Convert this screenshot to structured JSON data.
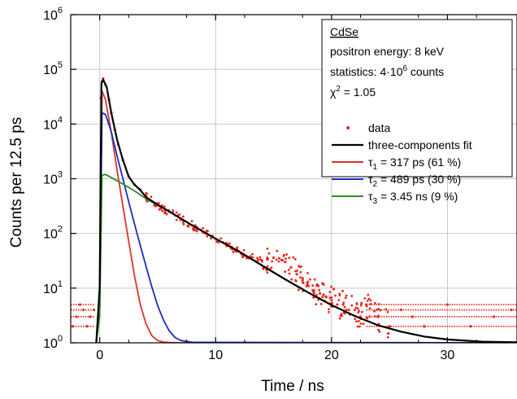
{
  "chart_data": {
    "type": "scatter",
    "title": "",
    "xlabel": "Time / ns",
    "ylabel": "Counts per 12.5 ps",
    "x_range": [
      -2.5,
      36
    ],
    "y_range": [
      1,
      1000000
    ],
    "y_scale": "log",
    "grid": true,
    "legend_position": "top-right",
    "x_ticks": [
      {
        "value": 0,
        "label": "0"
      },
      {
        "value": 10,
        "label": "10"
      },
      {
        "value": 20,
        "label": "20"
      },
      {
        "value": 30,
        "label": "30"
      }
    ],
    "y_ticks": [
      {
        "value": 1,
        "mantissa": "10",
        "exp": "0"
      },
      {
        "value": 10,
        "mantissa": "10",
        "exp": "1"
      },
      {
        "value": 100,
        "mantissa": "10",
        "exp": "2"
      },
      {
        "value": 1000,
        "mantissa": "10",
        "exp": "3"
      },
      {
        "value": 10000,
        "mantissa": "10",
        "exp": "4"
      },
      {
        "value": 100000,
        "mantissa": "10",
        "exp": "5"
      },
      {
        "value": 1000000,
        "mantissa": "10",
        "exp": "6"
      }
    ],
    "info": {
      "sample": "CdSe",
      "energy": "positron energy: 8 keV",
      "statistics_prefix": "statistics: 4·10",
      "statistics_exp": "6",
      "statistics_suffix": " counts",
      "chi_symbol": "χ",
      "chi_exp": "2",
      "chi_value": " = 1.05"
    },
    "legend": [
      {
        "type": "marker",
        "color": "#e8281e",
        "text": "data"
      },
      {
        "type": "line",
        "color": "#000000",
        "text": "three-components fit"
      },
      {
        "type": "line",
        "color": "#d9352a",
        "tau": "τ",
        "sub": "1",
        "text": " = 317 ps (61 %)"
      },
      {
        "type": "line",
        "color": "#1c2bbf",
        "tau": "τ",
        "sub": "2",
        "text": " = 489 ps (30 %)"
      },
      {
        "type": "line",
        "color": "#2e8b22",
        "tau": "τ",
        "sub": "3",
        "text": " = 3.45 ns (9 %)"
      }
    ],
    "series": [
      {
        "name": "τ1 = 317 ps (61 %)",
        "color": "#d9352a",
        "x": [
          -0.3,
          0,
          0.2,
          0.5,
          1,
          1.5,
          2,
          2.5,
          3,
          3.5,
          4,
          4.5,
          5,
          5.5,
          6,
          7,
          36
        ],
        "y": [
          1,
          6,
          40000,
          28000,
          7000,
          1450,
          315,
          72,
          17,
          5,
          2.2,
          1.35,
          1.1,
          1.03,
          1.01,
          1,
          1
        ]
      },
      {
        "name": "τ2 = 489 ps (30 %)",
        "color": "#1c2bbf",
        "x": [
          -0.3,
          0,
          0.2,
          0.5,
          1,
          1.5,
          2,
          2.5,
          3,
          3.5,
          4,
          4.5,
          5,
          5.5,
          6,
          6.5,
          7,
          8,
          36
        ],
        "y": [
          1,
          4,
          16000,
          15000,
          7200,
          2600,
          1000,
          380,
          150,
          60,
          25,
          10.5,
          4.8,
          2.6,
          1.65,
          1.25,
          1.1,
          1.02,
          1
        ]
      },
      {
        "name": "τ3 = 3.45 ns (9 %)",
        "color": "#2e8b22",
        "x": [
          -0.3,
          0,
          0.2,
          0.5,
          1,
          2,
          3,
          4,
          5,
          6,
          8,
          10,
          12,
          14,
          16,
          18,
          20,
          22,
          24,
          26,
          28,
          30,
          33,
          36
        ],
        "y": [
          1,
          3,
          1150,
          1200,
          1050,
          800,
          600,
          430,
          330,
          250,
          140,
          80,
          47,
          26,
          14.5,
          8.3,
          4.9,
          3.1,
          2.1,
          1.6,
          1.3,
          1.15,
          1.05,
          1.02
        ]
      },
      {
        "name": "three-components fit",
        "color": "#000000",
        "x": [
          -0.3,
          0,
          0.15,
          0.3,
          0.6,
          1,
          1.5,
          2,
          2.5,
          3,
          3.5,
          4,
          5,
          6,
          8,
          10,
          12,
          14,
          16,
          18,
          20,
          22,
          24,
          26,
          28,
          30,
          33,
          36
        ],
        "y": [
          1,
          10,
          55000,
          65000,
          48000,
          16000,
          5200,
          2200,
          1100,
          780,
          620,
          460,
          335,
          252,
          140,
          80,
          47,
          26,
          14.5,
          8.3,
          4.9,
          3.1,
          2.1,
          1.6,
          1.3,
          1.15,
          1.05,
          1.02
        ]
      }
    ],
    "data_series": {
      "name": "data",
      "color": "#e8281e",
      "x": [
        -2.3,
        -2.0,
        -1.7,
        -1.4,
        -1.1,
        -0.8,
        -0.5,
        0.0,
        0.1,
        0.2,
        0.3,
        0.5,
        0.8,
        1.0,
        1.3,
        1.6,
        2.0,
        2.5,
        3.0,
        3.5,
        4.0,
        5.0,
        6.0,
        7.0,
        8.0,
        9.0,
        10.0,
        11.0,
        12.0,
        13.0,
        14.0,
        14.5,
        15.0,
        15.5,
        16.0,
        16.5,
        17.0,
        17.5,
        18.0,
        18.5,
        19.0,
        19.5,
        20.0,
        20.5,
        21.0,
        21.5,
        22.0,
        22.5,
        23.0,
        24.0,
        25.0,
        26.0,
        27.0,
        28.0,
        30.0,
        32.0,
        34.0,
        35.5
      ],
      "y": [
        2,
        3,
        5,
        4,
        2,
        3,
        4,
        5,
        30000,
        60000,
        68000,
        52000,
        28000,
        16000,
        8000,
        4200,
        2200,
        1100,
        780,
        630,
        470,
        335,
        250,
        185,
        140,
        105,
        80,
        60,
        47,
        38,
        32,
        34,
        36,
        35,
        30,
        24,
        18,
        14,
        11,
        9,
        8,
        7,
        6,
        5,
        5,
        4,
        4,
        3,
        5,
        3,
        2,
        4,
        3,
        2,
        5,
        2,
        3,
        4
      ]
    }
  }
}
